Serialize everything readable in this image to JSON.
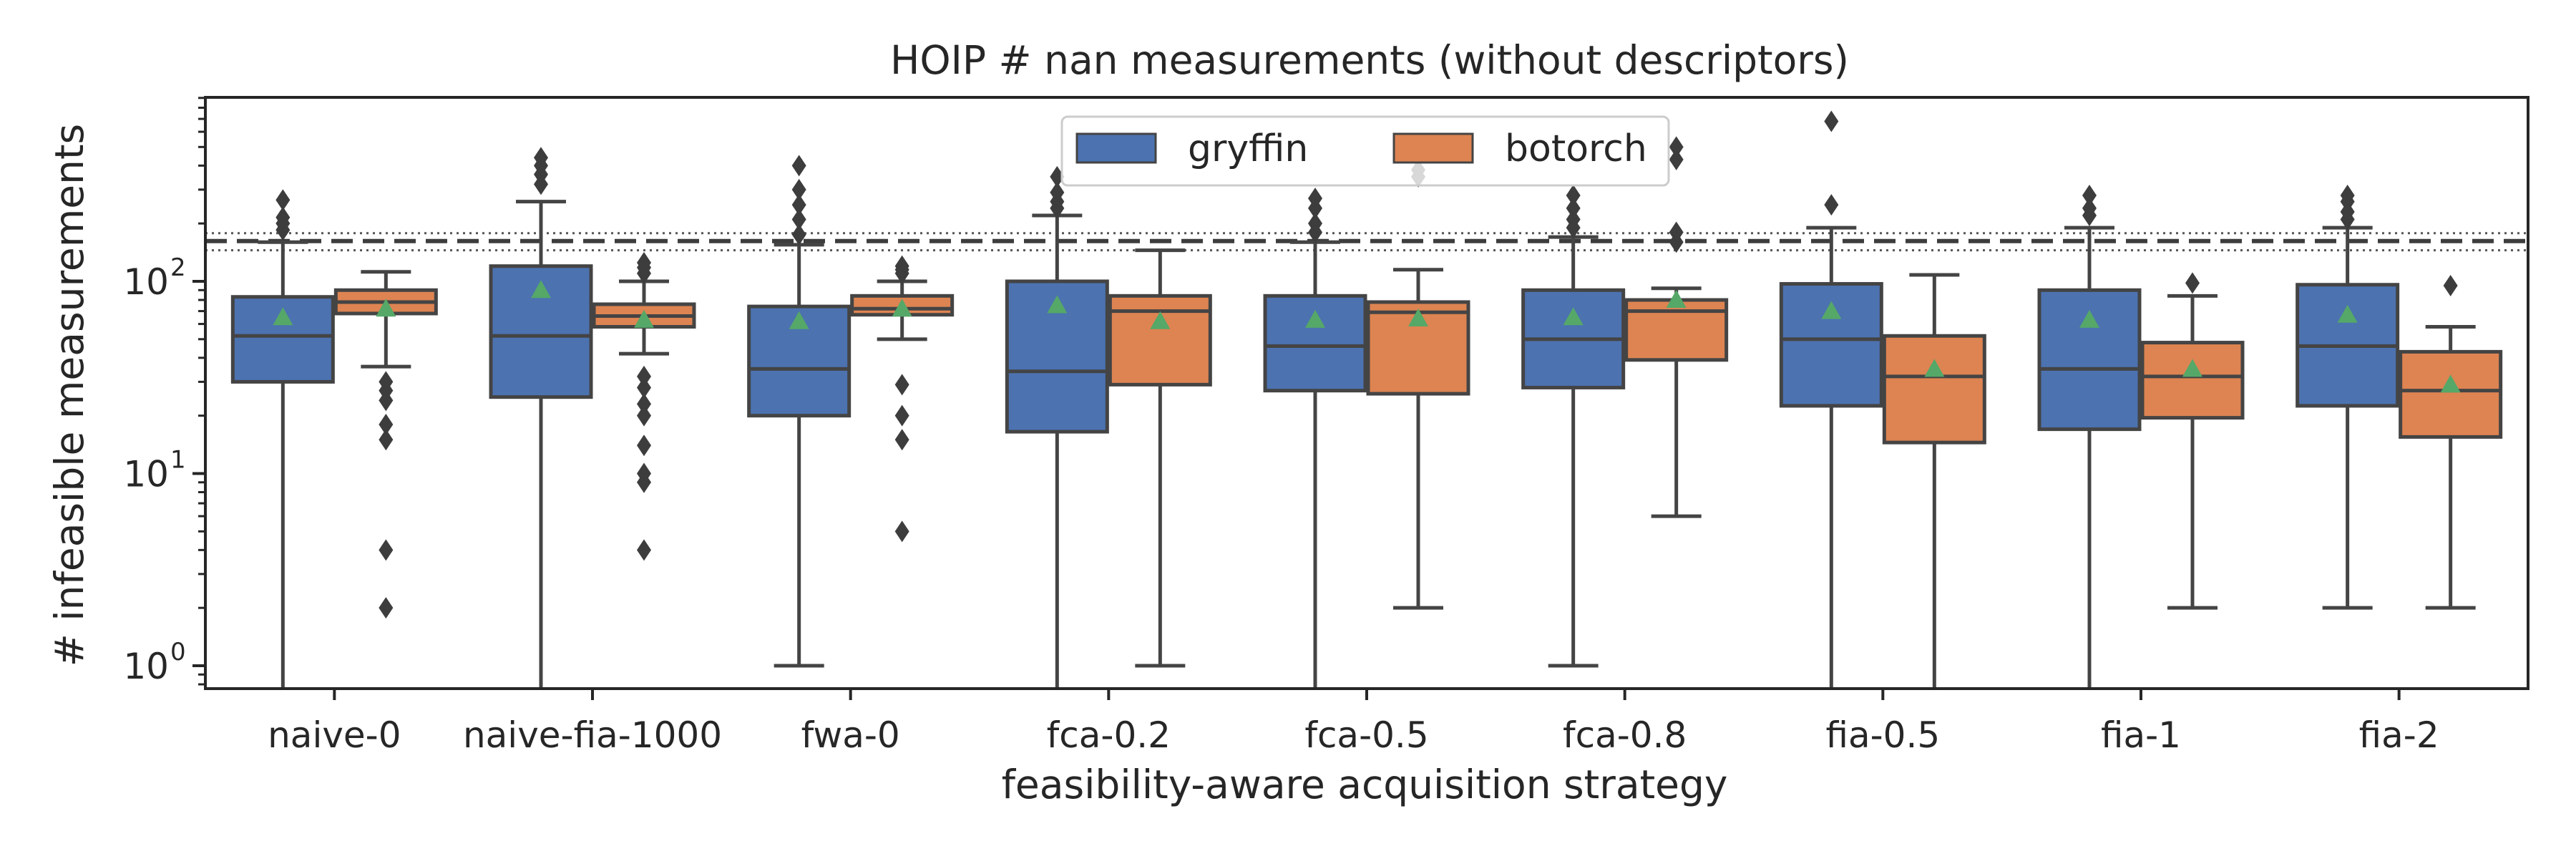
{
  "chart_data": {
    "type": "box",
    "title": "HOIP # nan measurements (without descriptors)",
    "xlabel": "feasibility-aware acquisition strategy",
    "ylabel": "# infeasible measurements",
    "yscale": "log",
    "ylim": [
      0.7,
      900
    ],
    "y_tick_labels": [
      "10",
      "10",
      "10"
    ],
    "y_tick_exponents": [
      "0",
      "1",
      "2"
    ],
    "y_tick_values": [
      1,
      10,
      100
    ],
    "categories": [
      "naive-0",
      "naive-fia-1000",
      "fwa-0",
      "fca-0.2",
      "fca-0.5",
      "fca-0.8",
      "fia-0.5",
      "fia-1",
      "fia-2"
    ],
    "legend": {
      "placement": "top-center",
      "entries": [
        "gryffin",
        "botorch"
      ]
    },
    "reference_lines": [
      {
        "value": 162,
        "style": "dashed"
      },
      {
        "value": 178,
        "style": "dotted"
      },
      {
        "value": 145,
        "style": "dotted"
      }
    ],
    "series": [
      {
        "name": "gryffin",
        "color": "#4c72b0",
        "boxes": [
          {
            "whislo": 0.7,
            "q1": 30,
            "med": 52,
            "q3": 83,
            "whishi": 160,
            "mean": 65,
            "fliers": [
              185,
              200,
              215,
              265
            ]
          },
          {
            "whislo": 0.7,
            "q1": 25,
            "med": 52,
            "q3": 120,
            "whishi": 260,
            "mean": 90,
            "fliers": [
              320,
              360,
              400,
              440
            ]
          },
          {
            "whislo": 1,
            "q1": 20,
            "med": 35,
            "q3": 74,
            "whishi": 155,
            "mean": 62,
            "fliers": [
              175,
              210,
              250,
              300,
              400
            ]
          },
          {
            "whislo": 0.7,
            "q1": 16.5,
            "med": 34,
            "q3": 100,
            "whishi": 220,
            "mean": 75,
            "fliers": [
              240,
              260,
              290,
              350
            ]
          },
          {
            "whislo": 0.7,
            "q1": 27,
            "med": 46,
            "q3": 84,
            "whishi": 160,
            "mean": 63,
            "fliers": [
              180,
              200,
              240,
              270
            ]
          },
          {
            "whislo": 1,
            "q1": 28,
            "med": 50,
            "q3": 90,
            "whishi": 170,
            "mean": 65,
            "fliers": [
              190,
              210,
              240,
              280
            ]
          },
          {
            "whislo": 0.7,
            "q1": 22.5,
            "med": 50,
            "q3": 97,
            "whishi": 190,
            "mean": 70,
            "fliers": [
              250,
              680
            ]
          },
          {
            "whislo": 0.7,
            "q1": 17,
            "med": 35,
            "q3": 90,
            "whishi": 190,
            "mean": 63,
            "fliers": [
              220,
              240,
              280
            ]
          },
          {
            "whislo": 2,
            "q1": 22.5,
            "med": 46,
            "q3": 96,
            "whishi": 190,
            "mean": 67,
            "fliers": [
              210,
              230,
              260,
              280
            ]
          }
        ]
      },
      {
        "name": "botorch",
        "color": "#dd8452",
        "boxes": [
          {
            "whislo": 36,
            "q1": 68,
            "med": 78,
            "q3": 90,
            "whishi": 112,
            "mean": 72,
            "fliers": [
              2,
              4,
              15,
              18,
              24,
              27,
              30
            ]
          },
          {
            "whislo": 42,
            "q1": 58,
            "med": 66,
            "q3": 76,
            "whishi": 100,
            "mean": 63,
            "fliers": [
              4,
              9,
              10,
              14,
              20,
              23,
              28,
              32,
              110,
              118,
              125
            ]
          },
          {
            "whislo": 50,
            "q1": 67,
            "med": 72,
            "q3": 84,
            "whishi": 100,
            "mean": 72,
            "fliers": [
              5,
              15,
              20,
              29,
              110,
              115,
              120
            ]
          },
          {
            "whislo": 1,
            "q1": 29,
            "med": 70,
            "q3": 84,
            "whishi": 145,
            "mean": 62,
            "fliers": []
          },
          {
            "whislo": 2,
            "q1": 26,
            "med": 69,
            "q3": 78,
            "whishi": 115,
            "mean": 64,
            "fliers": [
              350,
              380
            ]
          },
          {
            "whislo": 6,
            "q1": 39,
            "med": 70,
            "q3": 80,
            "whishi": 92,
            "mean": 80,
            "fliers": [
              160,
              180,
              430,
              500
            ]
          },
          {
            "whislo": 0.7,
            "q1": 14.5,
            "med": 32,
            "q3": 52,
            "whishi": 108,
            "mean": 35,
            "fliers": []
          },
          {
            "whislo": 2,
            "q1": 19.5,
            "med": 32,
            "q3": 48,
            "whishi": 84,
            "mean": 35,
            "fliers": [
              98
            ]
          },
          {
            "whislo": 2,
            "q1": 15.5,
            "med": 27,
            "q3": 43,
            "whishi": 58,
            "mean": 29,
            "fliers": [
              95
            ]
          }
        ]
      }
    ],
    "mean_marker_color": "#55a868",
    "grid": false
  }
}
